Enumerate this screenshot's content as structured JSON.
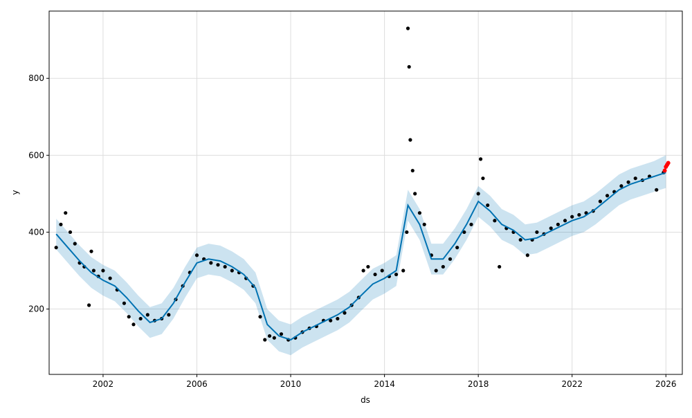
{
  "chart_data": {
    "type": "scatter",
    "xlabel": "ds",
    "ylabel": "y",
    "xlim": [
      1999.7,
      2026.7
    ],
    "ylim": [
      30,
      975
    ],
    "x_ticks": [
      2002,
      2006,
      2010,
      2014,
      2018,
      2022,
      2026
    ],
    "x_tick_labels": [
      "2002",
      "2006",
      "2010",
      "2014",
      "2018",
      "2022",
      "2026"
    ],
    "y_ticks": [
      200,
      400,
      600,
      800
    ],
    "y_tick_labels": [
      "200",
      "400",
      "600",
      "800"
    ],
    "grid": true,
    "colors": {
      "observed": "#000000",
      "forecast_line": "#0072B2",
      "interval_fill": "#0072B2",
      "highlight": "#ff0000",
      "grid": "#dddddd"
    },
    "forecast": {
      "x": [
        2000.0,
        2000.5,
        2001.0,
        2001.5,
        2002.0,
        2002.5,
        2003.0,
        2003.5,
        2004.0,
        2004.5,
        2005.0,
        2005.5,
        2006.0,
        2006.5,
        2007.0,
        2007.5,
        2008.0,
        2008.5,
        2009.0,
        2009.5,
        2010.0,
        2010.5,
        2011.0,
        2011.5,
        2012.0,
        2012.5,
        2013.0,
        2013.5,
        2014.0,
        2014.5,
        2015.0,
        2015.5,
        2016.0,
        2016.5,
        2017.0,
        2017.5,
        2018.0,
        2018.5,
        2019.0,
        2019.5,
        2020.0,
        2020.5,
        2021.0,
        2021.5,
        2022.0,
        2022.5,
        2023.0,
        2023.5,
        2024.0,
        2024.5,
        2025.0,
        2025.5,
        2026.0
      ],
      "yhat": [
        395,
        360,
        325,
        295,
        275,
        260,
        230,
        195,
        165,
        175,
        215,
        270,
        320,
        330,
        325,
        310,
        290,
        255,
        160,
        130,
        120,
        140,
        155,
        170,
        185,
        205,
        235,
        265,
        280,
        300,
        470,
        420,
        330,
        330,
        370,
        420,
        480,
        455,
        420,
        405,
        380,
        385,
        400,
        415,
        430,
        440,
        460,
        485,
        510,
        525,
        535,
        545,
        555
      ],
      "lower": [
        355,
        320,
        285,
        255,
        235,
        220,
        190,
        155,
        125,
        135,
        175,
        230,
        280,
        290,
        285,
        270,
        250,
        215,
        120,
        90,
        80,
        100,
        115,
        130,
        145,
        165,
        195,
        225,
        240,
        260,
        430,
        380,
        290,
        290,
        330,
        380,
        440,
        415,
        380,
        365,
        340,
        345,
        360,
        375,
        390,
        400,
        420,
        445,
        470,
        485,
        495,
        505,
        515
      ],
      "upper": [
        435,
        400,
        365,
        335,
        315,
        300,
        270,
        235,
        205,
        215,
        255,
        310,
        360,
        370,
        365,
        350,
        330,
        295,
        200,
        170,
        160,
        180,
        195,
        210,
        225,
        245,
        275,
        305,
        320,
        340,
        510,
        460,
        370,
        370,
        410,
        460,
        520,
        495,
        460,
        445,
        420,
        425,
        440,
        455,
        470,
        480,
        500,
        525,
        550,
        565,
        575,
        585,
        600
      ]
    },
    "observed": {
      "x": [
        2000.0,
        2000.2,
        2000.4,
        2000.6,
        2000.8,
        2001.0,
        2001.2,
        2001.4,
        2001.5,
        2001.6,
        2001.8,
        2002.0,
        2002.3,
        2002.6,
        2002.9,
        2003.1,
        2003.3,
        2003.6,
        2003.9,
        2004.2,
        2004.5,
        2004.8,
        2005.1,
        2005.4,
        2005.7,
        2006.0,
        2006.3,
        2006.6,
        2006.9,
        2007.2,
        2007.5,
        2007.8,
        2008.1,
        2008.4,
        2008.7,
        2008.9,
        2009.1,
        2009.3,
        2009.6,
        2009.9,
        2010.2,
        2010.5,
        2010.8,
        2011.1,
        2011.4,
        2011.7,
        2012.0,
        2012.3,
        2012.6,
        2012.9,
        2013.1,
        2013.3,
        2013.6,
        2013.9,
        2014.2,
        2014.5,
        2014.8,
        2014.95,
        2015.0,
        2015.05,
        2015.1,
        2015.2,
        2015.3,
        2015.5,
        2015.7,
        2016.0,
        2016.2,
        2016.5,
        2016.8,
        2017.1,
        2017.4,
        2017.7,
        2018.0,
        2018.1,
        2018.2,
        2018.4,
        2018.7,
        2018.9,
        2019.2,
        2019.5,
        2019.8,
        2020.1,
        2020.3,
        2020.5,
        2020.8,
        2021.1,
        2021.4,
        2021.7,
        2022.0,
        2022.3,
        2022.6,
        2022.9,
        2023.2,
        2023.5,
        2023.8,
        2024.1,
        2024.4,
        2024.7,
        2025.0,
        2025.3,
        2025.6,
        2025.9
      ],
      "y": [
        360,
        420,
        450,
        400,
        370,
        320,
        310,
        210,
        350,
        300,
        285,
        300,
        280,
        250,
        215,
        180,
        160,
        175,
        185,
        170,
        175,
        185,
        225,
        260,
        295,
        340,
        330,
        320,
        315,
        310,
        300,
        295,
        280,
        260,
        180,
        120,
        130,
        125,
        135,
        120,
        125,
        140,
        150,
        155,
        170,
        170,
        175,
        190,
        210,
        230,
        300,
        310,
        290,
        300,
        285,
        290,
        300,
        400,
        930,
        830,
        640,
        560,
        500,
        450,
        420,
        340,
        300,
        310,
        330,
        360,
        400,
        420,
        500,
        590,
        540,
        470,
        430,
        310,
        410,
        400,
        380,
        340,
        380,
        400,
        395,
        410,
        420,
        430,
        440,
        445,
        450,
        455,
        480,
        495,
        505,
        520,
        530,
        540,
        535,
        545,
        510,
        555
      ]
    },
    "highlight": {
      "x": [
        2025.95,
        2026.0,
        2026.05,
        2026.1
      ],
      "y": [
        560,
        570,
        575,
        580
      ]
    }
  }
}
